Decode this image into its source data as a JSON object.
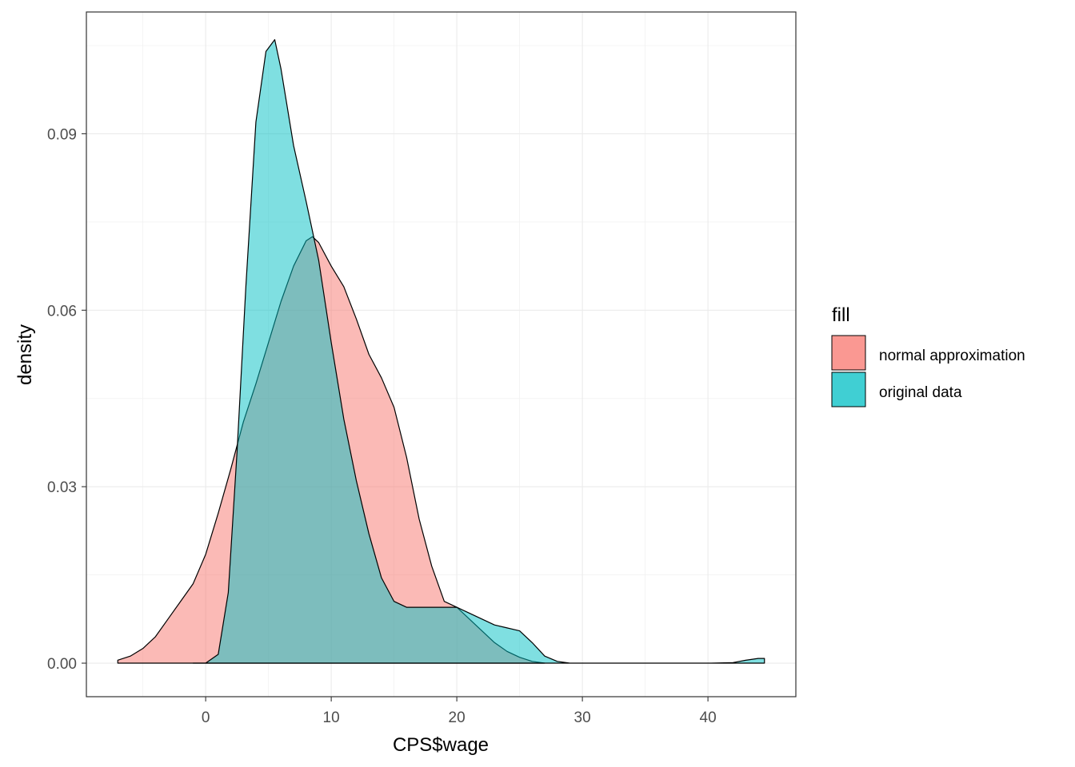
{
  "chart_data": {
    "type": "area",
    "xlabel": "CPS$wage",
    "ylabel": "density",
    "xlim": [
      -9.5,
      47
    ],
    "ylim": [
      -0.0057,
      0.1107
    ],
    "x_ticks": [
      0,
      10,
      20,
      30,
      40
    ],
    "x_tick_labels": [
      "0",
      "10",
      "20",
      "30",
      "40"
    ],
    "y_ticks": [
      0.0,
      0.03,
      0.06,
      0.09
    ],
    "y_tick_labels": [
      "0.00",
      "0.03",
      "0.06",
      "0.09"
    ],
    "grid": true,
    "legend": {
      "title": "fill",
      "position": "right"
    },
    "series": [
      {
        "name": "normal approximation",
        "color": "#F8766D",
        "alpha": 0.5,
        "x": [
          -7,
          -6,
          -5,
          -4,
          -3,
          -2,
          -1,
          0,
          1,
          2,
          3,
          4,
          5,
          6,
          7,
          8,
          8.5,
          9,
          10,
          11,
          12,
          13,
          14,
          15,
          16,
          17,
          18,
          19,
          20,
          21,
          22,
          23,
          24,
          25,
          26,
          27
        ],
        "y": [
          0.0005,
          0.0012,
          0.0025,
          0.0045,
          0.0075,
          0.0105,
          0.0135,
          0.0185,
          0.0255,
          0.033,
          0.041,
          0.0475,
          0.0545,
          0.0615,
          0.0675,
          0.0718,
          0.0725,
          0.0715,
          0.0675,
          0.064,
          0.0585,
          0.0525,
          0.0485,
          0.0435,
          0.035,
          0.0245,
          0.0165,
          0.0105,
          0.0095,
          0.0075,
          0.0055,
          0.0035,
          0.002,
          0.001,
          0.0003,
          0.0
        ]
      },
      {
        "name": "original data",
        "color": "#00BFC4",
        "alpha": 0.5,
        "x": [
          -1,
          0,
          1,
          1.8,
          2.5,
          3.2,
          4,
          4.8,
          5.5,
          6,
          7,
          8,
          9,
          10,
          11,
          12,
          13,
          14,
          15,
          16,
          17,
          18,
          19,
          20,
          21,
          22,
          23,
          24,
          25,
          26,
          27,
          28,
          29,
          30,
          35,
          40,
          42,
          43,
          44,
          44.5
        ],
        "y": [
          0.0,
          0.0,
          0.0015,
          0.012,
          0.036,
          0.064,
          0.092,
          0.104,
          0.106,
          0.101,
          0.088,
          0.0785,
          0.0685,
          0.0545,
          0.0415,
          0.031,
          0.022,
          0.0145,
          0.0105,
          0.0095,
          0.0095,
          0.0095,
          0.0095,
          0.0095,
          0.0085,
          0.0075,
          0.0065,
          0.006,
          0.0055,
          0.0035,
          0.0012,
          0.0003,
          0.0,
          0.0,
          0.0,
          0.0,
          0.0001,
          0.0005,
          0.0008,
          0.0008
        ]
      }
    ]
  }
}
